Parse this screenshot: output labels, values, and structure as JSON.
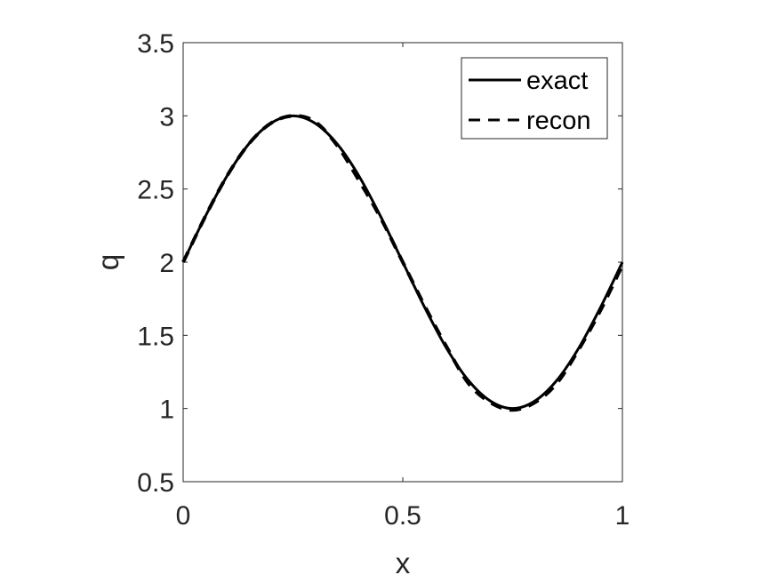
{
  "chart_data": {
    "type": "line",
    "title": "",
    "xlabel": "x",
    "ylabel": "q",
    "xlim": [
      0,
      1
    ],
    "ylim": [
      0.5,
      3.5
    ],
    "xticks": [
      "0",
      "0.5",
      "1"
    ],
    "yticks": [
      "0.5",
      "1",
      "1.5",
      "2",
      "2.5",
      "3",
      "3.5"
    ],
    "grid": false,
    "legend_position": "top-right",
    "series": [
      {
        "name": "exact",
        "style": "solid",
        "color": "#000000",
        "x": [
          0,
          0.05,
          0.1,
          0.15,
          0.2,
          0.25,
          0.3,
          0.35,
          0.4,
          0.45,
          0.5,
          0.55,
          0.6,
          0.65,
          0.7,
          0.75,
          0.8,
          0.85,
          0.9,
          0.95,
          1
        ],
        "y": [
          2,
          2.31,
          2.59,
          2.81,
          2.95,
          3,
          2.95,
          2.81,
          2.59,
          2.31,
          2,
          1.69,
          1.41,
          1.19,
          1.05,
          1,
          1.05,
          1.19,
          1.41,
          1.69,
          2
        ]
      },
      {
        "name": "recon",
        "style": "dashed",
        "color": "#000000",
        "x": [
          0,
          0.05,
          0.1,
          0.15,
          0.2,
          0.25,
          0.3,
          0.35,
          0.4,
          0.45,
          0.5,
          0.55,
          0.6,
          0.65,
          0.7,
          0.75,
          0.8,
          0.85,
          0.9,
          0.95,
          1
        ],
        "y": [
          2,
          2.31,
          2.59,
          2.81,
          2.95,
          3,
          2.96,
          2.8,
          2.56,
          2.3,
          2,
          1.7,
          1.42,
          1.17,
          1.04,
          0.99,
          1.04,
          1.17,
          1.4,
          1.67,
          1.98
        ]
      }
    ]
  }
}
